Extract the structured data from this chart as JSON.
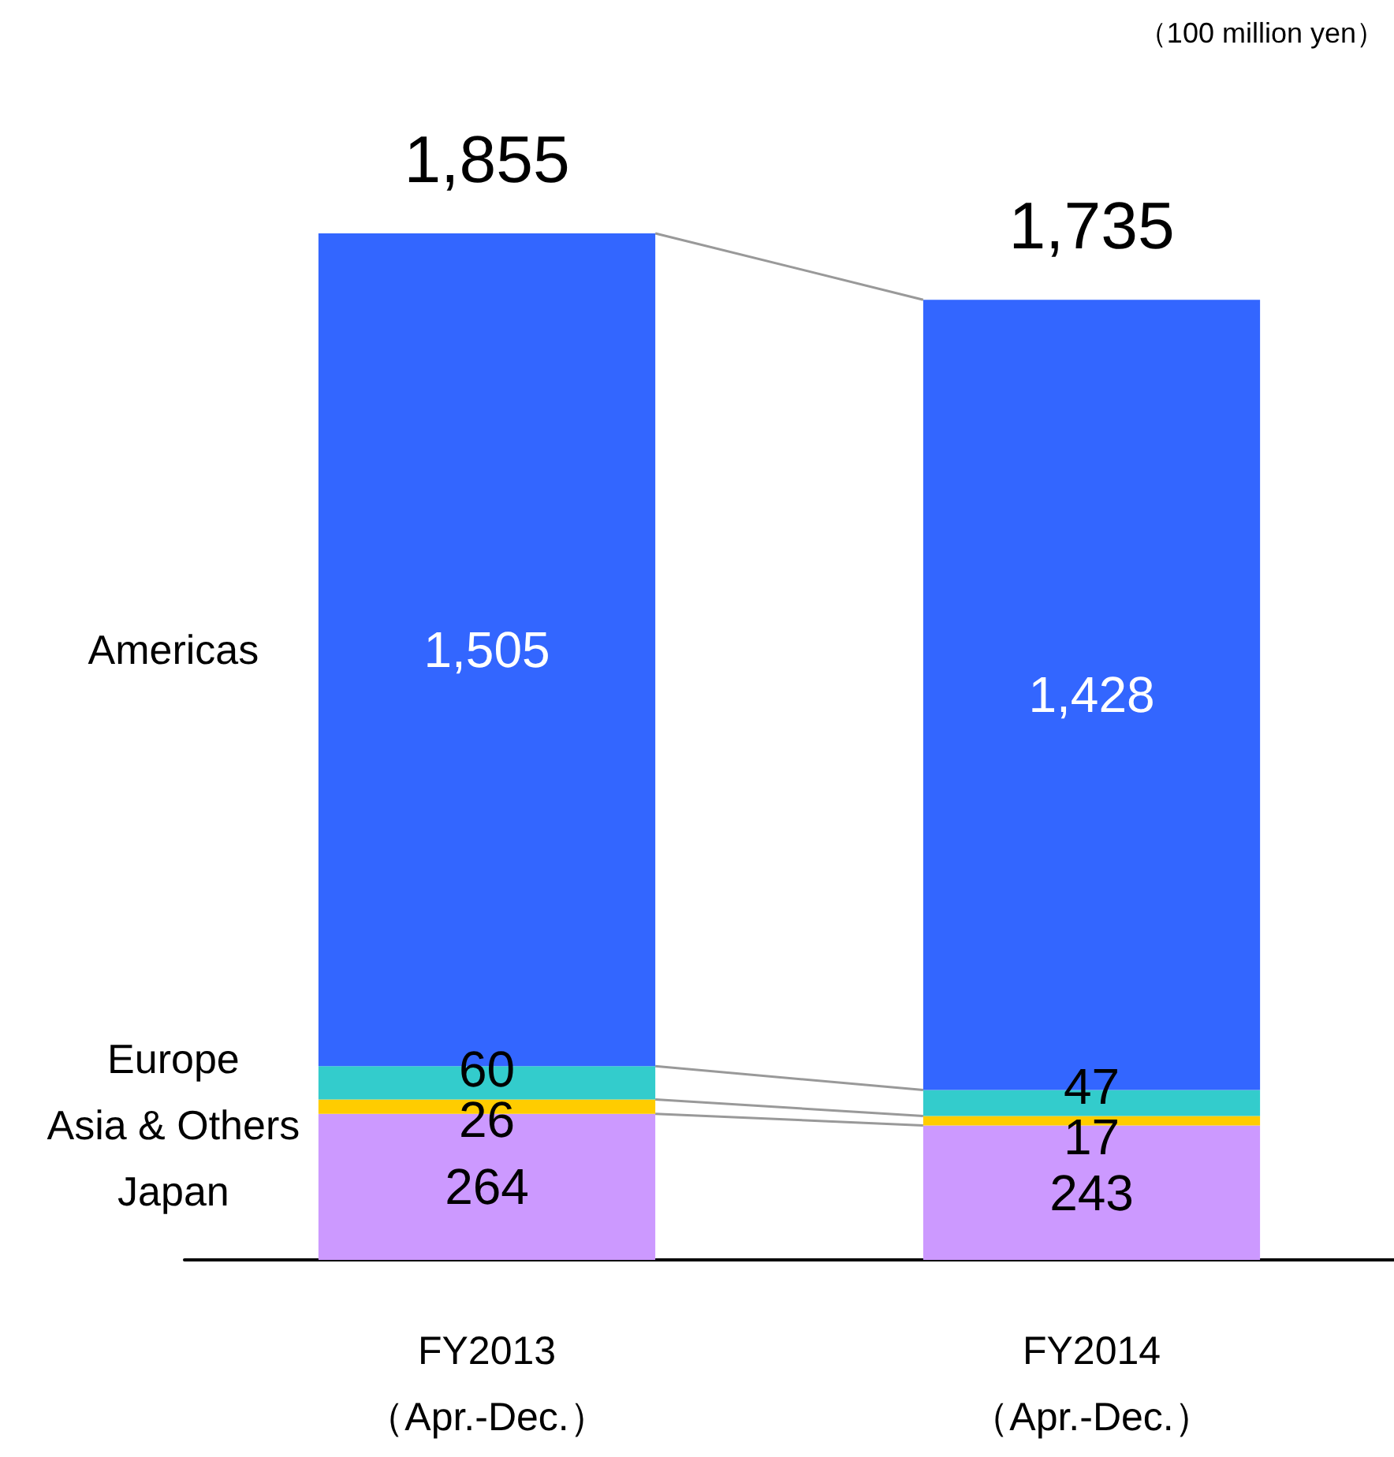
{
  "chart_data": {
    "type": "bar",
    "stacked": true,
    "tick_labels": "x",
    "categories": [
      "FY2013\n（Apr.-Dec.）",
      "FY2014\n（Apr.-Dec.）"
    ],
    "series": [
      {
        "name": "Japan",
        "color": "#cc99ff",
        "values": [
          264,
          243
        ],
        "value_labels": [
          "264",
          "243"
        ]
      },
      {
        "name": "Asia & Others",
        "color": "#ffcc00",
        "values": [
          26,
          17
        ],
        "value_labels": [
          "26",
          "17"
        ]
      },
      {
        "name": "Europe",
        "color": "#33cccc",
        "values": [
          60,
          47
        ],
        "value_labels": [
          "60",
          "47"
        ]
      },
      {
        "name": "Americas",
        "color": "#3366ff",
        "values": [
          1505,
          1428
        ],
        "value_labels": [
          "1,505",
          "1,428"
        ]
      }
    ],
    "totals": [
      "1,855",
      "1,735"
    ],
    "annotations": [
      "（100 million yen）"
    ]
  }
}
